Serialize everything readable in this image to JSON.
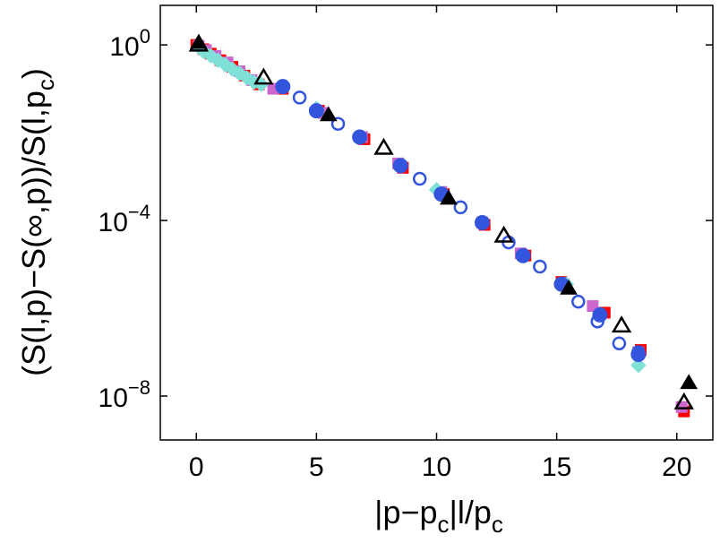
{
  "chart_data": {
    "type": "scatter",
    "title": "",
    "xlabel": {
      "base": "|p−p",
      "sub": "c",
      "mid": "|l/p",
      "sub2": "c"
    },
    "ylabel": {
      "prefix": "(S(l,p)−S(∞,p))/S(l,p",
      "sub": "c",
      "suffix": ")"
    },
    "xlim": [
      -1.5,
      21.5
    ],
    "ylim_log10": [
      -9.0,
      0.9
    ],
    "y_scale": "log",
    "grid": false,
    "legend": "none",
    "x_ticks": [
      {
        "value": 0,
        "label": "0"
      },
      {
        "value": 5,
        "label": "5"
      },
      {
        "value": 10,
        "label": "10"
      },
      {
        "value": 15,
        "label": "15"
      },
      {
        "value": 20,
        "label": "20"
      }
    ],
    "y_ticks": [
      {
        "exp": 0,
        "base": "10",
        "sup": "0"
      },
      {
        "exp": -4,
        "base": "10",
        "sup": "−4"
      },
      {
        "exp": -8,
        "base": "10",
        "sup": "−8"
      }
    ],
    "series": [
      {
        "marker": "square",
        "color": "#ff0000",
        "filled": true,
        "x": [
          0,
          0.3,
          0.6,
          1.0,
          1.5,
          2.0,
          2.6,
          3.6,
          5.1,
          7.0,
          8.6,
          10.3,
          12.0,
          13.7,
          15.2,
          17.0,
          18.5,
          20.3
        ],
        "log10y": [
          0.0,
          -0.1,
          -0.2,
          -0.35,
          -0.5,
          -0.7,
          -0.9,
          -1.0,
          -1.5,
          -2.15,
          -2.8,
          -3.4,
          -4.1,
          -4.8,
          -5.4,
          -6.1,
          -6.95,
          -8.35
        ]
      },
      {
        "marker": "square",
        "color": "#cc66cc",
        "filled": true,
        "x": [
          0.1,
          0.4,
          0.8,
          1.3,
          1.8,
          2.3,
          3.2,
          5.3,
          6.9,
          8.4,
          10.2,
          11.9,
          13.5,
          15.3,
          16.5,
          18.4,
          20.2
        ],
        "log10y": [
          -0.02,
          -0.12,
          -0.25,
          -0.4,
          -0.6,
          -0.8,
          -1.0,
          -1.55,
          -2.1,
          -2.7,
          -3.35,
          -4.05,
          -4.75,
          -5.45,
          -5.95,
          -7.0,
          -8.25
        ]
      },
      {
        "marker": "diamond",
        "color": "#7fe0d8",
        "filled": true,
        "x": [
          0.1,
          0.3,
          0.6,
          0.9,
          1.2,
          1.5,
          1.8,
          2.1,
          2.4,
          2.7,
          5.0,
          6.8,
          10.0,
          13.6,
          15.4,
          18.4
        ],
        "log10y": [
          -0.05,
          -0.15,
          -0.25,
          -0.35,
          -0.45,
          -0.55,
          -0.65,
          -0.75,
          -0.85,
          -0.9,
          -1.45,
          -2.1,
          -3.3,
          -4.8,
          -5.45,
          -7.3
        ]
      },
      {
        "marker": "circle",
        "color": "#3355dd",
        "filled": false,
        "x": [
          4.3,
          5.9,
          9.3,
          11.0,
          13.0,
          14.3,
          15.9,
          16.7,
          17.6,
          18.4
        ],
        "log10y": [
          -1.2,
          -1.8,
          -3.05,
          -3.7,
          -4.5,
          -5.05,
          -5.85,
          -6.3,
          -6.8,
          -7.0
        ]
      },
      {
        "marker": "circle",
        "color": "#3355dd",
        "filled": true,
        "x": [
          3.6,
          5.0,
          6.8,
          8.5,
          10.2,
          11.9,
          13.6,
          15.2,
          16.8,
          18.4
        ],
        "log10y": [
          -0.95,
          -1.5,
          -2.1,
          -2.75,
          -3.4,
          -4.05,
          -4.8,
          -5.45,
          -6.15,
          -7.05
        ]
      },
      {
        "marker": "triangle",
        "color": "#000000",
        "filled": false,
        "x": [
          0.1,
          2.8,
          7.8,
          12.8,
          17.7,
          20.3
        ],
        "log10y": [
          0.0,
          -0.75,
          -2.35,
          -4.35,
          -6.4,
          -8.15
        ]
      },
      {
        "marker": "triangle",
        "color": "#000000",
        "filled": true,
        "x": [
          0.1,
          5.5,
          10.5,
          15.5,
          20.5
        ],
        "log10y": [
          0.05,
          -1.6,
          -3.5,
          -5.55,
          -7.7
        ]
      }
    ]
  }
}
